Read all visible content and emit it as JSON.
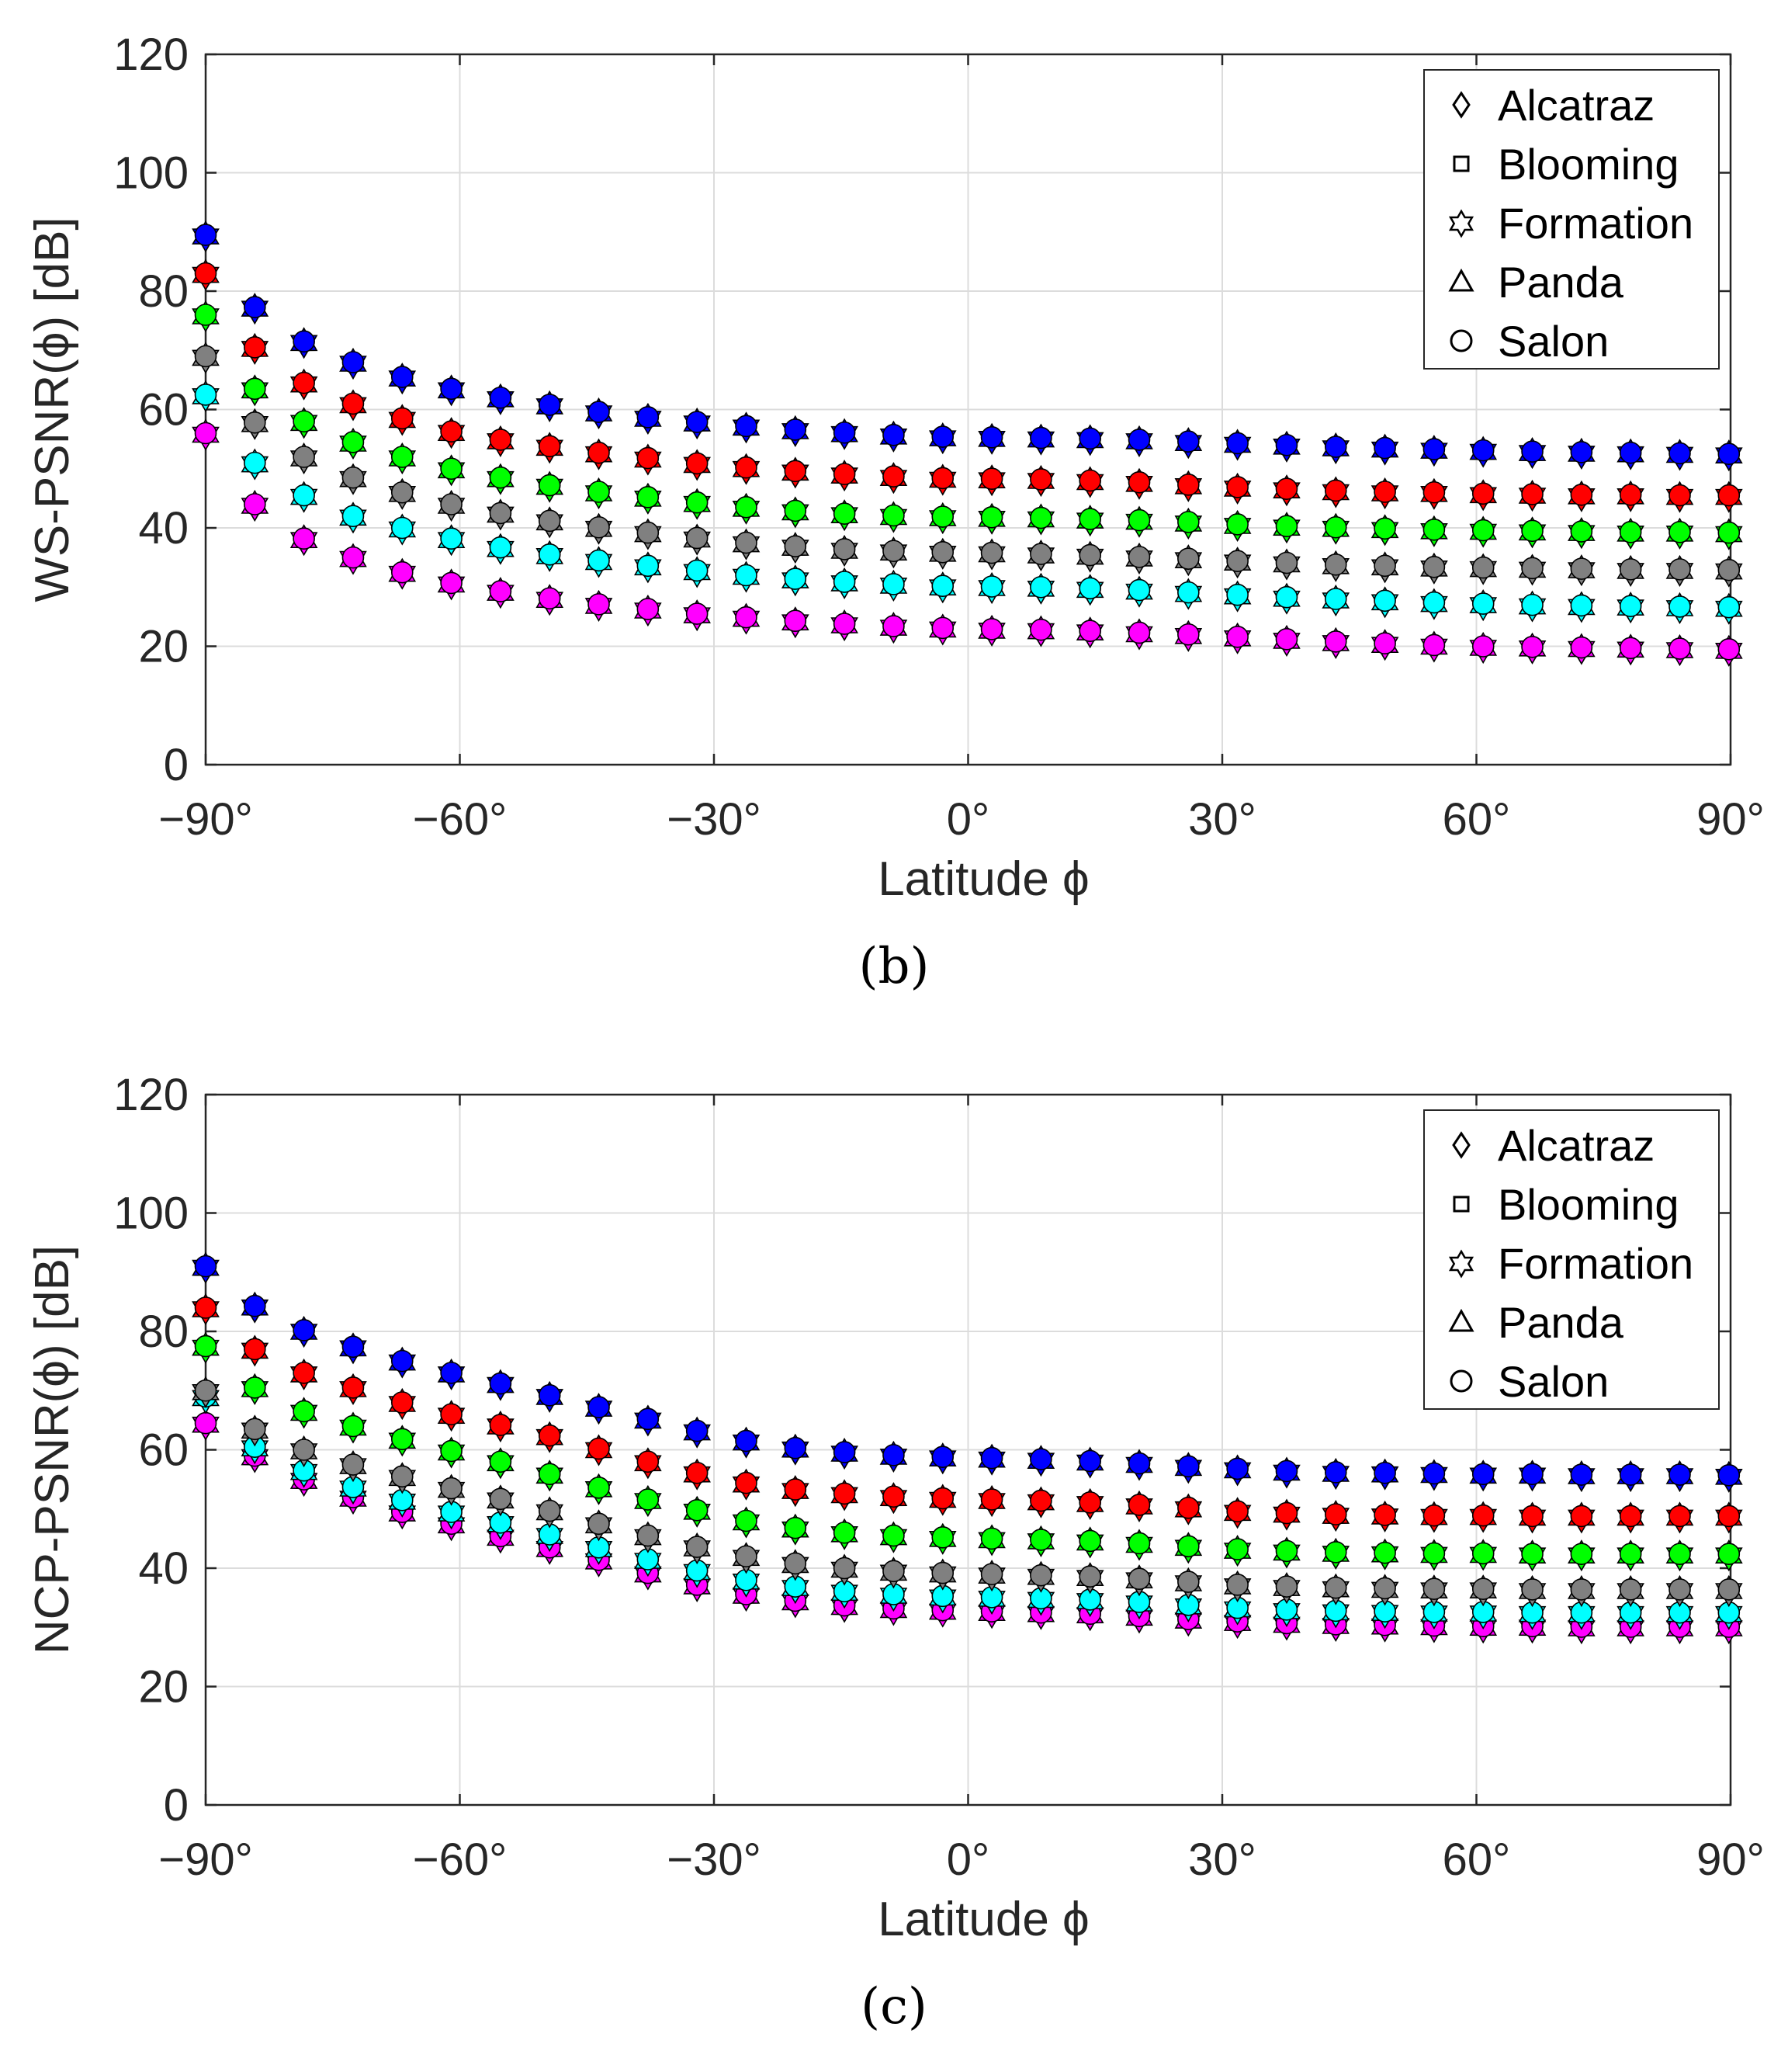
{
  "chart_data": [
    {
      "type": "scatter",
      "panel_label": "(b)",
      "title": "",
      "xlabel": "Latitude ϕ",
      "ylabel": "WS-PSNR(ϕ) [dB]",
      "xlim": [
        -90,
        90
      ],
      "ylim": [
        0,
        120
      ],
      "xticks": [
        -90,
        -60,
        -30,
        0,
        30,
        60,
        90
      ],
      "xtick_labels": [
        "−90°",
        "−60°",
        "−30°",
        "0°",
        "30°",
        "60°",
        "90°"
      ],
      "yticks": [
        0,
        20,
        40,
        60,
        80,
        100,
        120
      ],
      "ytick_labels": [
        "0",
        "20",
        "40",
        "60",
        "80",
        "100",
        "120"
      ],
      "grid": true,
      "legend_position": "top-right",
      "legend": [
        {
          "label": "Alcatraz",
          "marker": "diamond"
        },
        {
          "label": "Blooming",
          "marker": "square"
        },
        {
          "label": "Formation",
          "marker": "hexagram"
        },
        {
          "label": "Panda",
          "marker": "triangle"
        },
        {
          "label": "Salon",
          "marker": "circle"
        }
      ],
      "x": [
        -90,
        -84.2,
        -78.4,
        -72.6,
        -66.8,
        -61,
        -55.2,
        -49.4,
        -43.6,
        -37.8,
        -32,
        -26.2,
        -20.4,
        -14.6,
        -8.8,
        -3,
        2.8,
        8.6,
        14.4,
        20.2,
        26,
        31.8,
        37.6,
        43.4,
        49.2,
        55,
        60.8,
        66.6,
        72.4,
        78.2,
        84,
        89.8
      ],
      "series": [
        {
          "name": "blue",
          "color": "#0000ff",
          "values": [
            89.5,
            77.3,
            71.5,
            68,
            65.5,
            63.5,
            62,
            60.8,
            59.6,
            58.7,
            57.9,
            57.2,
            56.6,
            56.1,
            55.7,
            55.4,
            55.3,
            55.2,
            55.1,
            54.9,
            54.6,
            54.3,
            54,
            53.7,
            53.5,
            53.3,
            53.1,
            52.9,
            52.8,
            52.7,
            52.6,
            52.5
          ]
        },
        {
          "name": "red",
          "color": "#ff0000",
          "values": [
            83,
            70.5,
            64.5,
            61,
            58.5,
            56.3,
            54.9,
            53.8,
            52.7,
            51.8,
            50.9,
            50.2,
            49.6,
            49.1,
            48.7,
            48.4,
            48.3,
            48.2,
            48,
            47.7,
            47.3,
            46.9,
            46.6,
            46.3,
            46.1,
            46,
            45.8,
            45.7,
            45.6,
            45.6,
            45.5,
            45.5
          ]
        },
        {
          "name": "green",
          "color": "#00ff00",
          "values": [
            76,
            63.5,
            58,
            54.5,
            52,
            50,
            48.5,
            47.2,
            46.1,
            45.2,
            44.3,
            43.5,
            42.9,
            42.4,
            42.1,
            41.9,
            41.8,
            41.7,
            41.5,
            41.3,
            41,
            40.6,
            40.3,
            40.1,
            39.9,
            39.7,
            39.6,
            39.5,
            39.4,
            39.3,
            39.3,
            39.2
          ]
        },
        {
          "name": "gray",
          "color": "#808080",
          "values": [
            69,
            57.8,
            52,
            48.5,
            46,
            44,
            42.5,
            41.2,
            40.1,
            39.2,
            38.3,
            37.5,
            36.9,
            36.4,
            36.1,
            35.9,
            35.8,
            35.6,
            35.4,
            35.1,
            34.8,
            34.4,
            34.1,
            33.8,
            33.6,
            33.4,
            33.3,
            33.2,
            33.1,
            33,
            33,
            32.9
          ]
        },
        {
          "name": "cyan",
          "color": "#00ffff",
          "values": [
            62.5,
            51,
            45.5,
            42,
            40,
            38.2,
            36.7,
            35.5,
            34.5,
            33.6,
            32.8,
            32,
            31.4,
            30.9,
            30.5,
            30.2,
            30.1,
            30,
            29.8,
            29.5,
            29.1,
            28.7,
            28.3,
            28,
            27.7,
            27.4,
            27.2,
            27,
            26.9,
            26.8,
            26.7,
            26.6
          ]
        },
        {
          "name": "magenta",
          "color": "#ff00ff",
          "values": [
            56,
            44,
            38.2,
            35,
            32.5,
            30.7,
            29.3,
            28.1,
            27.1,
            26.3,
            25.5,
            24.9,
            24.3,
            23.8,
            23.4,
            23.1,
            22.9,
            22.8,
            22.6,
            22.3,
            22,
            21.6,
            21.2,
            20.8,
            20.5,
            20.2,
            20,
            19.9,
            19.8,
            19.7,
            19.6,
            19.5
          ]
        }
      ]
    },
    {
      "type": "scatter",
      "panel_label": "(c)",
      "title": "",
      "xlabel": "Latitude ϕ",
      "ylabel": "NCP-PSNR(ϕ) [dB]",
      "xlim": [
        -90,
        90
      ],
      "ylim": [
        0,
        120
      ],
      "xticks": [
        -90,
        -60,
        -30,
        0,
        30,
        60,
        90
      ],
      "xtick_labels": [
        "−90°",
        "−60°",
        "−30°",
        "0°",
        "30°",
        "60°",
        "90°"
      ],
      "yticks": [
        0,
        20,
        40,
        60,
        80,
        100,
        120
      ],
      "ytick_labels": [
        "0",
        "20",
        "40",
        "60",
        "80",
        "100",
        "120"
      ],
      "grid": true,
      "legend_position": "top-right",
      "legend": [
        {
          "label": "Alcatraz",
          "marker": "diamond"
        },
        {
          "label": "Blooming",
          "marker": "square"
        },
        {
          "label": "Formation",
          "marker": "hexagram"
        },
        {
          "label": "Panda",
          "marker": "triangle"
        },
        {
          "label": "Salon",
          "marker": "circle"
        }
      ],
      "x": [
        -90,
        -84.2,
        -78.4,
        -72.6,
        -66.8,
        -61,
        -55.2,
        -49.4,
        -43.6,
        -37.8,
        -32,
        -26.2,
        -20.4,
        -14.6,
        -8.8,
        -3,
        2.8,
        8.6,
        14.4,
        20.2,
        26,
        31.8,
        37.6,
        43.4,
        49.2,
        55,
        60.8,
        66.6,
        72.4,
        78.2,
        84,
        89.8
      ],
      "series": [
        {
          "name": "blue",
          "color": "#0000ff",
          "values": [
            91,
            84.3,
            80.2,
            77.4,
            75,
            73,
            71.2,
            69.2,
            67.2,
            65.2,
            63.2,
            61.5,
            60.3,
            59.6,
            59.1,
            58.8,
            58.6,
            58.4,
            58.1,
            57.7,
            57.2,
            56.8,
            56.4,
            56.2,
            56.1,
            56,
            55.9,
            55.9,
            55.8,
            55.8,
            55.8,
            55.7
          ]
        },
        {
          "name": "red",
          "color": "#ff0000",
          "values": [
            84,
            77,
            73,
            70.5,
            68,
            66,
            64.2,
            62.4,
            60.2,
            58,
            56.1,
            54.4,
            53.3,
            52.6,
            52.1,
            51.8,
            51.6,
            51.4,
            51.1,
            50.7,
            50.2,
            49.6,
            49.3,
            49.1,
            49,
            48.9,
            48.9,
            48.8,
            48.8,
            48.8,
            48.8,
            48.8
          ]
        },
        {
          "name": "green",
          "color": "#00ff00",
          "values": [
            77.5,
            70.5,
            66.5,
            64,
            61.8,
            59.8,
            58,
            55.9,
            53.6,
            51.6,
            49.8,
            48,
            46.8,
            46,
            45.5,
            45.2,
            45,
            44.8,
            44.6,
            44.2,
            43.7,
            43.2,
            42.9,
            42.7,
            42.6,
            42.5,
            42.5,
            42.4,
            42.4,
            42.4,
            42.4,
            42.4
          ]
        },
        {
          "name": "gray",
          "color": "#808080",
          "values": [
            70,
            63.5,
            60,
            57.5,
            55.5,
            53.5,
            51.7,
            49.7,
            47.5,
            45.5,
            43.6,
            42,
            40.8,
            40,
            39.5,
            39.2,
            39,
            38.8,
            38.6,
            38.2,
            37.7,
            37.2,
            36.9,
            36.7,
            36.6,
            36.5,
            36.5,
            36.4,
            36.4,
            36.4,
            36.4,
            36.4
          ]
        },
        {
          "name": "cyan",
          "color": "#00ffff",
          "values": [
            69,
            60.5,
            56.5,
            53.7,
            51.5,
            49.5,
            47.7,
            45.7,
            43.5,
            41.5,
            39.6,
            38,
            36.9,
            36.1,
            35.6,
            35.3,
            35.1,
            34.9,
            34.7,
            34.3,
            33.8,
            33.3,
            33,
            32.8,
            32.7,
            32.6,
            32.6,
            32.5,
            32.5,
            32.5,
            32.5,
            32.5
          ]
        },
        {
          "name": "magenta",
          "color": "#ff00ff",
          "values": [
            64.5,
            59,
            55,
            52,
            49.5,
            47.5,
            45.4,
            43.5,
            41.4,
            39.2,
            37.2,
            35.6,
            34.5,
            33.7,
            33.2,
            32.9,
            32.7,
            32.5,
            32.3,
            31.9,
            31.4,
            31,
            30.7,
            30.5,
            30.4,
            30.3,
            30.2,
            30.2,
            30.1,
            30.1,
            30.1,
            30.1
          ]
        }
      ]
    }
  ]
}
